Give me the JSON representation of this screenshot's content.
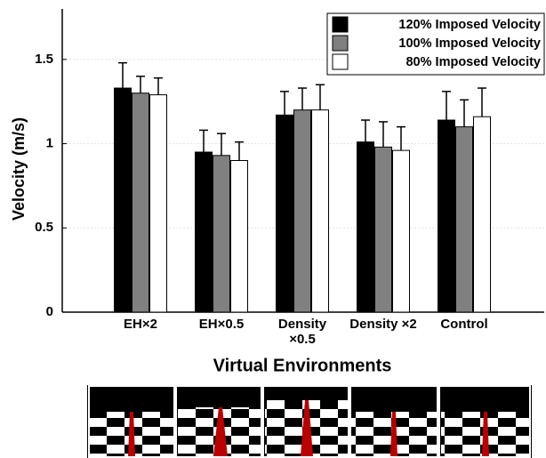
{
  "chart_data": {
    "type": "bar",
    "ylabel": "Velocity (m/s)",
    "xlabel": "Virtual Environments",
    "categories": [
      "EH×2",
      "EH×0.5",
      "Density ×0.5",
      "Density ×2",
      "Control"
    ],
    "series": [
      {
        "name": "120% Imposed Velocity",
        "color": "#000000",
        "values": [
          1.33,
          0.95,
          1.17,
          1.01,
          1.14
        ],
        "errors": [
          0.15,
          0.13,
          0.14,
          0.13,
          0.17
        ]
      },
      {
        "name": "100% Imposed Velocity",
        "color": "#808080",
        "values": [
          1.3,
          0.93,
          1.2,
          0.98,
          1.1
        ],
        "errors": [
          0.1,
          0.13,
          0.13,
          0.15,
          0.16
        ]
      },
      {
        "name": "80% Imposed Velocity",
        "color": "#ffffff",
        "values": [
          1.29,
          0.9,
          1.2,
          0.96,
          1.16
        ],
        "errors": [
          0.1,
          0.11,
          0.15,
          0.14,
          0.17
        ]
      }
    ],
    "ylim": [
      0,
      1.8
    ],
    "yticks": [
      0,
      0.5,
      1,
      1.5
    ],
    "grid": true,
    "legend": "upper right"
  }
}
